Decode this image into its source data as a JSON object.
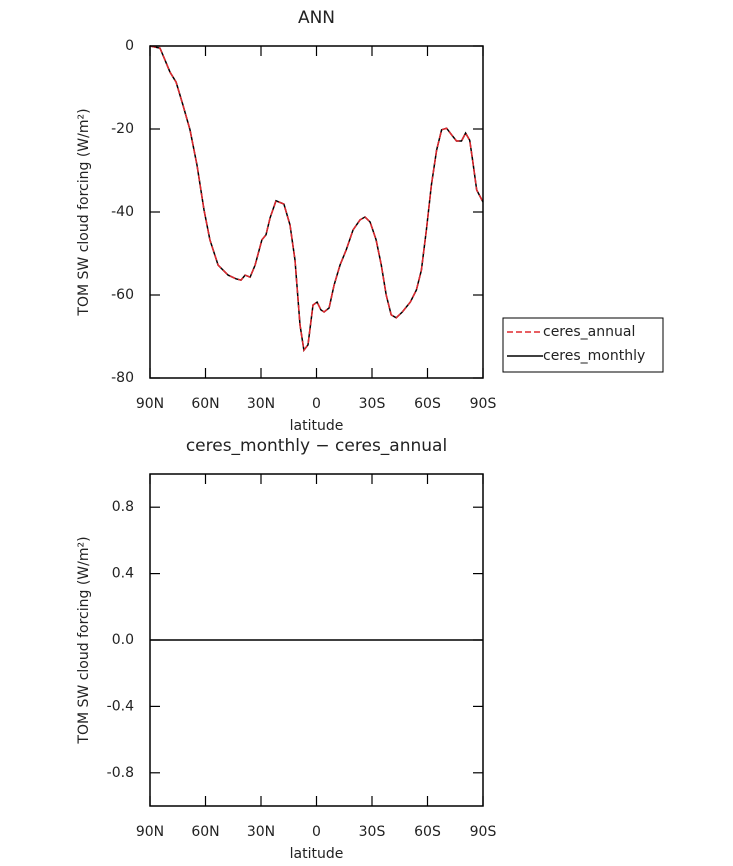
{
  "chart_data": [
    {
      "type": "line",
      "title": "ANN",
      "xlabel": "latitude",
      "ylabel": "TOM SW cloud forcing (W/m²)",
      "x": [
        90,
        84.6,
        81.9,
        79.2,
        75.9,
        72.2,
        68.4,
        64.6,
        60.8,
        57.6,
        53.2,
        47.8,
        43.5,
        40.8,
        38.6,
        35.9,
        33.2,
        29.5,
        27.3,
        25.1,
        21.9,
        17.6,
        14.3,
        11.6,
        8.9,
        6.8,
        4.6,
        1.9,
        -0.3,
        -2.4,
        -4.1,
        -6.8,
        -9.5,
        -12.7,
        -16.0,
        -19.8,
        -23.5,
        -26.2,
        -29.0,
        -32.2,
        -35.0,
        -37.7,
        -40.4,
        -43.1,
        -46.4,
        -50.7,
        -54.0,
        -56.7,
        -59.4,
        -62.1,
        -64.9,
        -67.6,
        -70.3,
        -73.0,
        -75.7,
        -78.4,
        -80.6,
        -82.8,
        -84.4,
        -86.6,
        -90
      ],
      "series": [
        {
          "name": "ceres_annual",
          "color": "#e0282e",
          "dashed": true,
          "values": [
            0,
            -0.5,
            -3.4,
            -6.3,
            -8.7,
            -14.2,
            -20.2,
            -28.7,
            -39.5,
            -46.7,
            -52.8,
            -55.2,
            -56.1,
            -56.4,
            -55.2,
            -55.7,
            -52.8,
            -46.7,
            -45.5,
            -41.4,
            -37.3,
            -38.1,
            -43.1,
            -51.6,
            -67.2,
            -73.3,
            -72.0,
            -62.4,
            -61.7,
            -63.6,
            -64.1,
            -63.1,
            -57.6,
            -52.8,
            -49.2,
            -44.3,
            -41.9,
            -41.2,
            -42.4,
            -46.7,
            -52.8,
            -60.0,
            -64.8,
            -65.5,
            -64.1,
            -61.7,
            -58.8,
            -54.0,
            -44.3,
            -33.5,
            -25.1,
            -20.2,
            -19.8,
            -21.4,
            -22.9,
            -22.9,
            -21.0,
            -22.7,
            -27.5,
            -34.7,
            -37.6
          ]
        },
        {
          "name": "ceres_monthly",
          "color": "#000000",
          "dashed": false,
          "values": [
            0,
            -0.5,
            -3.4,
            -6.3,
            -8.7,
            -14.2,
            -20.2,
            -28.7,
            -39.5,
            -46.7,
            -52.8,
            -55.2,
            -56.1,
            -56.4,
            -55.2,
            -55.7,
            -52.8,
            -46.7,
            -45.5,
            -41.4,
            -37.3,
            -38.1,
            -43.1,
            -51.6,
            -67.2,
            -73.3,
            -72.0,
            -62.4,
            -61.7,
            -63.6,
            -64.1,
            -63.1,
            -57.6,
            -52.8,
            -49.2,
            -44.3,
            -41.9,
            -41.2,
            -42.4,
            -46.7,
            -52.8,
            -60.0,
            -64.8,
            -65.5,
            -64.1,
            -61.7,
            -58.8,
            -54.0,
            -44.3,
            -33.5,
            -25.1,
            -20.2,
            -19.8,
            -21.4,
            -22.9,
            -22.9,
            -21.0,
            -22.7,
            -27.5,
            -34.7,
            -37.6
          ]
        }
      ],
      "xlim": [
        90,
        -90
      ],
      "xticks": [
        {
          "value": 90,
          "label": "90N"
        },
        {
          "value": 60,
          "label": "60N"
        },
        {
          "value": 30,
          "label": "30N"
        },
        0,
        {
          "value": -30,
          "label": "30S"
        },
        {
          "value": -60,
          "label": "60S"
        },
        {
          "value": -90,
          "label": "90S"
        }
      ],
      "ylim": [
        -80,
        0
      ],
      "yticks": [
        0,
        -20,
        -40,
        -60,
        -80
      ],
      "legend": "right"
    },
    {
      "type": "line",
      "title": "ceres_monthly − ceres_annual",
      "xlabel": "latitude",
      "ylabel": "TOM SW cloud forcing (W/m²)",
      "x": [
        90,
        60,
        30,
        0,
        -30,
        -60,
        -90
      ],
      "series": [
        {
          "color": "#000000",
          "dashed": false,
          "values": [
            0,
            0,
            0,
            0,
            0,
            0,
            0
          ]
        }
      ],
      "xlim": [
        90,
        -90
      ],
      "xticks": [
        {
          "value": 90,
          "label": "90N"
        },
        {
          "value": 60,
          "label": "60N"
        },
        {
          "value": 30,
          "label": "30N"
        },
        0,
        {
          "value": -30,
          "label": "30S"
        },
        {
          "value": -60,
          "label": "60S"
        },
        {
          "value": -90,
          "label": "90S"
        }
      ],
      "ylim": [
        -1,
        1
      ],
      "yticks": [
        0.8,
        0.4,
        {
          "value": 0,
          "label": "0.0"
        },
        -0.4,
        -0.8
      ]
    }
  ]
}
